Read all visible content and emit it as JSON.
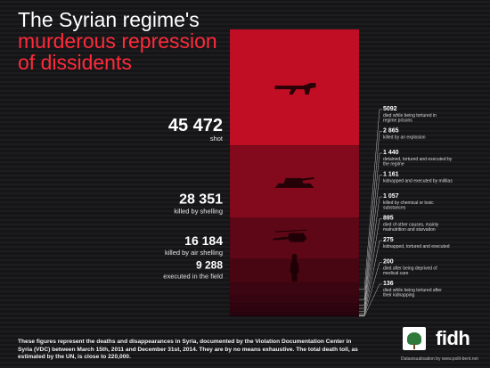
{
  "title": {
    "line1": "The Syrian regime's",
    "line2": "murderous repression",
    "line3": "of dissidents"
  },
  "colors": {
    "background": "#151517",
    "accent": "#ff2a3a",
    "bar_top": "#e8102b",
    "bar_bottom": "#2a0208"
  },
  "chart_data": {
    "type": "bar",
    "stacked": true,
    "unit": "victims",
    "segments": [
      {
        "label": "shot",
        "value": 45472,
        "display": "45 472",
        "icon": "rifle-icon",
        "side": "left"
      },
      {
        "label": "killed by shelling",
        "value": 28351,
        "display": "28 351",
        "icon": "tank-icon",
        "side": "left"
      },
      {
        "label": "killed by air shelling",
        "value": 16184,
        "display": "16 184",
        "icon": "helicopter-icon",
        "side": "left"
      },
      {
        "label": "executed in the field",
        "value": 9288,
        "display": "9 288",
        "icon": "executed-person-icon",
        "side": "left"
      },
      {
        "label": "died while being tortured in regime prisons",
        "value": 5092,
        "display": "5092",
        "side": "right"
      },
      {
        "label": "killed by an explosion",
        "value": 2865,
        "display": "2 865",
        "side": "right"
      },
      {
        "label": "detained, tortured and executed by the regime",
        "value": 1440,
        "display": "1 440",
        "side": "right"
      },
      {
        "label": "kidnapped and executed by militias",
        "value": 1161,
        "display": "1 161",
        "side": "right"
      },
      {
        "label": "killed by chemical or toxic substances",
        "value": 1057,
        "display": "1 057",
        "side": "right"
      },
      {
        "label": "died of other causes, mainly malnutrition and starvation",
        "value": 895,
        "display": "895",
        "side": "right"
      },
      {
        "label": "kidnapped, tortured and executed",
        "value": 275,
        "display": "275",
        "side": "right"
      },
      {
        "label": "died after being deprived of medical care",
        "value": 200,
        "display": "200",
        "side": "right"
      },
      {
        "label": "died while being tortured after their kidnapping",
        "value": 136,
        "display": "136",
        "side": "right"
      }
    ]
  },
  "footer": {
    "note": "These figures represent the deaths and disappearances in Syria, documented by the Violation Documentation Center in Syria (VDC) between March 15th, 2011 and December 31st, 2014. They are by no means exhaustive. The total death toll, as estimated by the UN, is close to 220,000.",
    "brand": "fidh",
    "credit": "Datavisualisation by www.polit-bent.net"
  }
}
